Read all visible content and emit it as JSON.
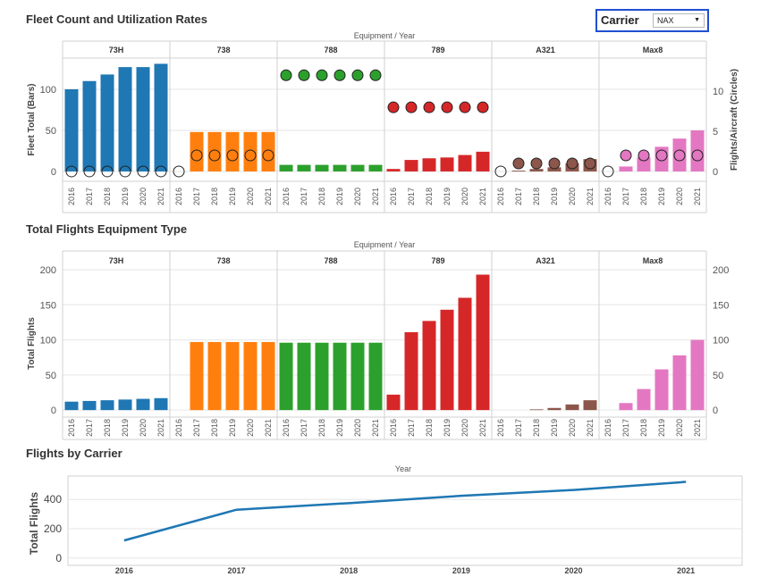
{
  "titles": {
    "chart1": "Fleet Count and Utilization Rates",
    "chart2": "Total Flights Equipment Type",
    "chart3": "Flights by Carrier"
  },
  "carrier_filter": {
    "label": "Carrier",
    "value": "NAX",
    "icon": "caret-down-icon"
  },
  "colors": {
    "73H": "#1f77b4",
    "738": "#ff7f0e",
    "788": "#2ca02c",
    "789": "#d62728",
    "A321": "#8c564b",
    "Max8": "#e377c2",
    "line": "#1f77b4",
    "grid": "#e6e6e6",
    "divider": "#d0d0d0"
  },
  "chart_data": [
    {
      "type": "bar",
      "title": "Fleet Count and Utilization Rates",
      "header_label": "Equipment  /  Year",
      "ylabel": "Fleet Total (Bars)",
      "y2label": "Flights/Aircraft (Circles)",
      "ylim": [
        -12,
        138
      ],
      "y2lim": [
        -1.23,
        14.15
      ],
      "yticks": [
        0,
        50,
        100
      ],
      "y2ticks": [
        0,
        5,
        10
      ],
      "categories": [
        "2016",
        "2017",
        "2018",
        "2019",
        "2020",
        "2021"
      ],
      "panels": [
        {
          "name": "73H",
          "bars": [
            100,
            110,
            118,
            127,
            127,
            131
          ],
          "circles": [
            0,
            0,
            0,
            0,
            0,
            0
          ]
        },
        {
          "name": "738",
          "bars": [
            0,
            48,
            48,
            48,
            48,
            48
          ],
          "circles": [
            0,
            2,
            2,
            2,
            2,
            2
          ]
        },
        {
          "name": "788",
          "bars": [
            8,
            8,
            8,
            8,
            8,
            8
          ],
          "circles": [
            12,
            12,
            12,
            12,
            12,
            12
          ]
        },
        {
          "name": "789",
          "bars": [
            3,
            14,
            16,
            17,
            20,
            24
          ],
          "circles": [
            8,
            8,
            8,
            8,
            8,
            8
          ]
        },
        {
          "name": "A321",
          "bars": [
            0,
            1,
            3,
            5,
            10,
            15
          ],
          "circles": [
            0,
            1,
            1,
            1,
            1,
            1
          ]
        },
        {
          "name": "Max8",
          "bars": [
            0,
            6,
            17,
            30,
            40,
            50
          ],
          "circles": [
            0,
            2,
            2,
            2,
            2,
            2
          ]
        }
      ]
    },
    {
      "type": "bar",
      "title": "Total Flights Equipment Type",
      "header_label": "Equipment  /  Year",
      "ylabel": "Total Flights",
      "ylim": [
        -10,
        200
      ],
      "yticks": [
        0,
        50,
        100,
        150,
        200
      ],
      "categories": [
        "2016",
        "2017",
        "2018",
        "2019",
        "2020",
        "2021"
      ],
      "panels": [
        {
          "name": "73H",
          "bars": [
            12,
            13,
            14,
            15,
            16,
            17
          ]
        },
        {
          "name": "738",
          "bars": [
            0,
            97,
            97,
            97,
            97,
            97
          ]
        },
        {
          "name": "788",
          "bars": [
            96,
            96,
            96,
            96,
            96,
            96
          ]
        },
        {
          "name": "789",
          "bars": [
            22,
            111,
            127,
            143,
            160,
            193
          ]
        },
        {
          "name": "A321",
          "bars": [
            0,
            0,
            1,
            3,
            8,
            14
          ]
        },
        {
          "name": "Max8",
          "bars": [
            0,
            10,
            30,
            58,
            78,
            100
          ]
        }
      ]
    },
    {
      "type": "line",
      "title": "Flights by Carrier",
      "header_label": "Year",
      "ylabel": "Total Flights",
      "ylim": [
        -50,
        560
      ],
      "yticks": [
        0,
        200,
        400
      ],
      "x": [
        "2016",
        "2017",
        "2018",
        "2019",
        "2020",
        "2021"
      ],
      "series": [
        {
          "values": [
            120,
            330,
            375,
            425,
            465,
            520
          ]
        }
      ]
    }
  ]
}
